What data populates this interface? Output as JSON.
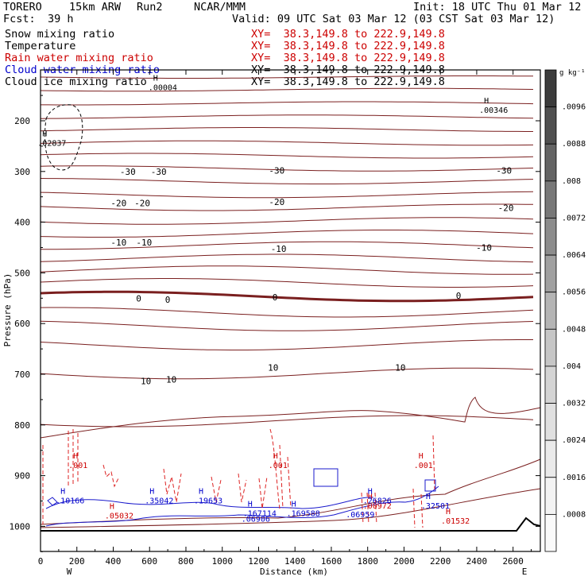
{
  "header": {
    "model": "TORERO",
    "grid": "15km ARW",
    "run": "Run2",
    "org": "NCAR/MMM",
    "init": "Init: 18 UTC Thu 01 Mar 12",
    "fcst_label": "Fcst:",
    "fcst_value": "39 h",
    "valid": "Valid: 09 UTC Sat 03 Mar 12 (03 CST Sat 03 Mar 12)"
  },
  "fields": [
    {
      "name": "Snow mixing ratio",
      "xy": "XY=  38.3,149.8 to 222.9,149.8",
      "color": "#000000"
    },
    {
      "name": "Temperature",
      "xy": "XY=  38.3,149.8 to 222.9,149.8",
      "color": "#cc0000"
    },
    {
      "name": "Rain water mixing ratio",
      "xy": "XY=  38.3,149.8 to 222.9,149.8",
      "color": "#cc0000"
    },
    {
      "name": "Cloud water mixing ratio",
      "xy": "XY=  38.3,149.8 to 222.9,149.8",
      "color": "#0000cc"
    },
    {
      "name": "Cloud ice mixing ratio",
      "xy": "XY=  38.3,149.8 to 222.9,149.8",
      "color": "#000000"
    }
  ],
  "chart_data": {
    "type": "line",
    "title": "",
    "xlabel": "Distance (km)",
    "ylabel": "Pressure (hPa)",
    "xlim": [
      0,
      2750
    ],
    "ylim": [
      100,
      1050
    ],
    "x_ticks": [
      0,
      200,
      400,
      600,
      800,
      1000,
      1200,
      1400,
      1600,
      1800,
      2000,
      2200,
      2400,
      2600
    ],
    "y_ticks": [
      200,
      300,
      400,
      500,
      600,
      700,
      800,
      900,
      1000
    ],
    "x_end_labels": {
      "left": "W",
      "right": "E"
    },
    "colorbar": {
      "unit": "g kg⁻¹",
      "labels": [
        ".0096",
        ".0088",
        ".008",
        ".0072",
        ".0064",
        ".0056",
        ".0048",
        ".004",
        ".0032",
        ".0024",
        ".0016",
        ".0008"
      ],
      "fills": [
        "#3c3c3c",
        "#505050",
        "#646464",
        "#787878",
        "#8c8c8c",
        "#a0a0a0",
        "#b4b4b4",
        "#c6c6c6",
        "#d4d4d4",
        "#e0e0e0",
        "#eaeaea",
        "#f3f3f3",
        "#fafafa"
      ]
    },
    "temperature_series": [
      {
        "name": "-30",
        "values": [
          [
            0,
            300
          ],
          [
            2750,
            300
          ]
        ],
        "label_at": [
          [
            480,
            300
          ],
          [
            650,
            300
          ],
          [
            1300,
            298
          ],
          [
            2550,
            298
          ]
        ]
      },
      {
        "name": "-20",
        "values": [
          [
            0,
            367
          ],
          [
            2750,
            367
          ]
        ],
        "label_at": [
          [
            430,
            362
          ],
          [
            560,
            362
          ],
          [
            1300,
            360
          ],
          [
            2560,
            372
          ]
        ]
      },
      {
        "name": "-10",
        "values": [
          [
            0,
            445
          ],
          [
            2750,
            445
          ]
        ],
        "label_at": [
          [
            430,
            440
          ],
          [
            570,
            440
          ],
          [
            1310,
            452
          ],
          [
            2440,
            450
          ]
        ]
      },
      {
        "name": "0",
        "values": [
          [
            0,
            550
          ],
          [
            2750,
            550
          ]
        ],
        "label_at": [
          [
            540,
            550
          ],
          [
            700,
            553
          ],
          [
            1290,
            548
          ],
          [
            2300,
            545
          ]
        ]
      },
      {
        "name": "10",
        "values": [
          [
            0,
            713
          ],
          [
            2750,
            713
          ]
        ],
        "label_at": [
          [
            580,
            713
          ],
          [
            720,
            710
          ],
          [
            1280,
            687
          ],
          [
            1980,
            687
          ]
        ]
      }
    ],
    "maxima": [
      {
        "field": "snow",
        "pressure": 180,
        "distance": 2440,
        "value": ".00346"
      },
      {
        "field": "snow",
        "pressure": 245,
        "distance": 10,
        "value": ".02837"
      },
      {
        "field": "ice",
        "pressure": 135,
        "distance": 620,
        "value": ".00004"
      },
      {
        "field": "rain",
        "pressure": 880,
        "distance": 180,
        "value": ".001"
      },
      {
        "field": "rain",
        "pressure": 880,
        "distance": 1280,
        "value": ".001"
      },
      {
        "field": "rain",
        "pressure": 880,
        "distance": 2080,
        "value": ".001"
      },
      {
        "field": "rain",
        "pressure": 980,
        "distance": 380,
        "value": ".05032"
      },
      {
        "field": "rain",
        "pressure": 960,
        "distance": 1800,
        "value": ".00972"
      },
      {
        "field": "rain",
        "pressure": 990,
        "distance": 2230,
        "value": ".01532"
      },
      {
        "field": "cloud",
        "pressure": 950,
        "distance": 110,
        "value": ".10166"
      },
      {
        "field": "cloud",
        "pressure": 950,
        "distance": 600,
        "value": ".35042"
      },
      {
        "field": "cloud",
        "pressure": 950,
        "distance": 870,
        "value": ".19653"
      },
      {
        "field": "cloud",
        "pressure": 975,
        "distance": 1140,
        "value": ".167114"
      },
      {
        "field": "cloud",
        "pressure": 975,
        "distance": 1380,
        "value": ".169588"
      },
      {
        "field": "cloud",
        "pressure": 950,
        "distance": 1800,
        "value": ".26826"
      },
      {
        "field": "cloud",
        "pressure": 960,
        "distance": 2120,
        "value": ".32501"
      }
    ],
    "extra_labels": [
      ".06906",
      ".06959"
    ],
    "grid": false,
    "legend": "top-left"
  }
}
